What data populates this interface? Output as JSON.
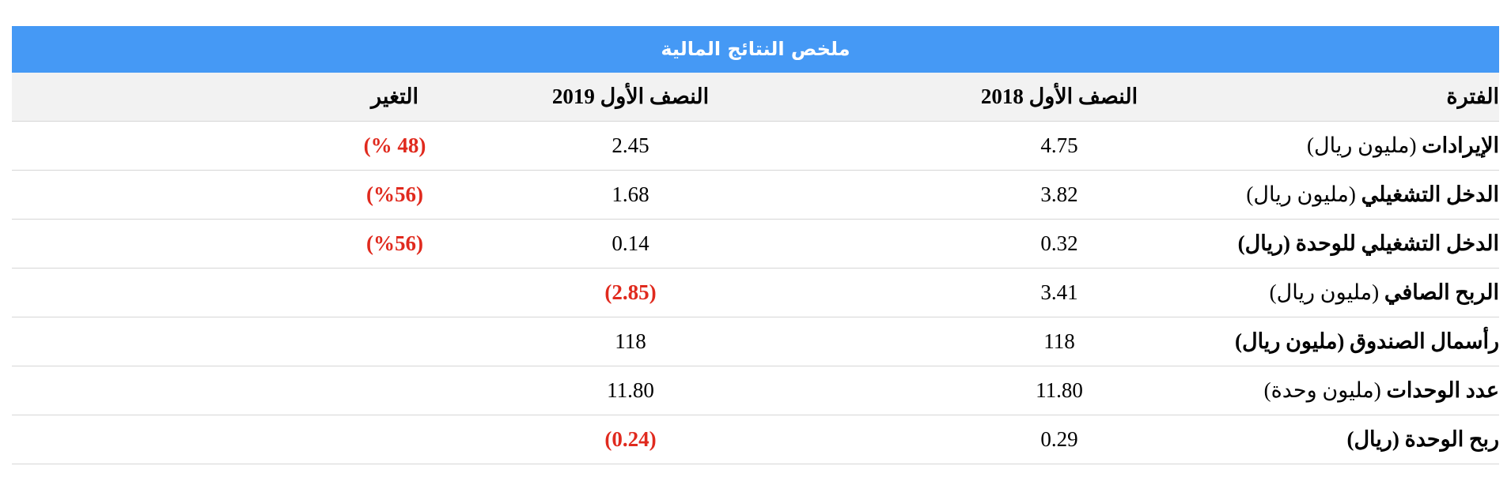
{
  "table": {
    "title": "ملخص النتائج المالية",
    "header": [
      "الفترة",
      "النصف الأول 2018",
      "النصف الأول 2019",
      "التغير"
    ],
    "rows": [
      {
        "label": "الإيرادات",
        "unit": "(مليون ريال)",
        "cells": [
          "4.75",
          "2.45",
          "(48 %)"
        ]
      },
      {
        "label": "الدخل التشغيلي",
        "unit": "(مليون ريال)",
        "cells": [
          "3.82",
          "1.68",
          "(%56)"
        ]
      },
      {
        "label": "الدخل التشغيلي للوحدة (ريال)",
        "cells": [
          "0.32",
          "0.14",
          "(%56)"
        ]
      },
      {
        "label": "الربح الصافي",
        "unit": "(مليون ريال)",
        "cells": [
          "3.41",
          "(2.85)"
        ]
      },
      {
        "label": "رأسمال الصندوق (مليون ريال)",
        "cells": [
          "118",
          "118"
        ]
      },
      {
        "label": "عدد الوحدات",
        "unit": "(مليون وحدة)",
        "cells": [
          "11.80",
          "11.80"
        ]
      },
      {
        "label": "ربح الوحدة (ريال)",
        "cells": [
          "0.29",
          "(0.24)"
        ]
      }
    ]
  }
}
